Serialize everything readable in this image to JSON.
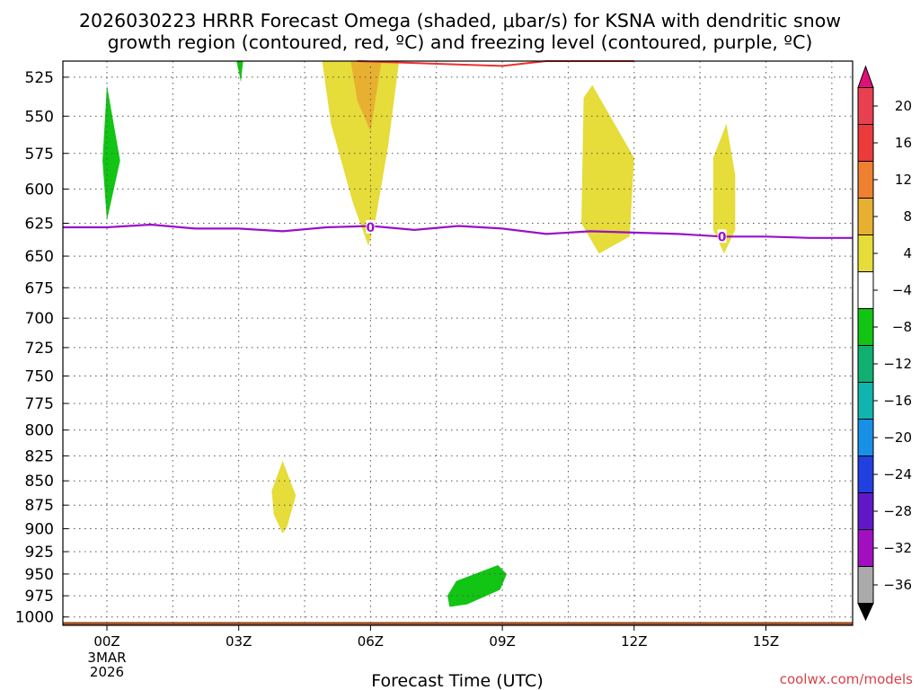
{
  "chart_data": {
    "type": "contour-time-height",
    "title_line1": "2026030223 HRRR Forecast Omega (shaded, μbar/s) for KSNA with dendritic snow",
    "title_line2": "growth region (contoured, red, ºC) and freezing level (contoured, purple, ºC)",
    "xlabel": "Forecast Time (UTC)",
    "credit": "coolwx.com/models",
    "x_range_hours": [
      -1,
      17
    ],
    "y_range_hpa": [
      1010,
      515
    ],
    "x_ticks": [
      {
        "hour": 0,
        "label": "00Z",
        "sub": [
          "3MAR",
          "2026"
        ]
      },
      {
        "hour": 3,
        "label": "03Z"
      },
      {
        "hour": 6,
        "label": "06Z"
      },
      {
        "hour": 9,
        "label": "09Z"
      },
      {
        "hour": 12,
        "label": "12Z"
      },
      {
        "hour": 15,
        "label": "15Z"
      }
    ],
    "y_ticks": [
      525,
      550,
      575,
      600,
      625,
      650,
      675,
      700,
      725,
      750,
      775,
      800,
      825,
      850,
      875,
      900,
      925,
      950,
      975,
      1000
    ],
    "vertical_grid_hours": [
      0,
      3,
      6,
      9,
      12,
      15
    ],
    "colorbar": {
      "labels": [
        "20",
        "16",
        "12",
        "8",
        "4",
        "−4",
        "−8",
        "−12",
        "−16",
        "−20",
        "−24",
        "−28",
        "−32",
        "−36"
      ],
      "colors": [
        "#e84050",
        "#ed3a3a",
        "#ee8030",
        "#e8b030",
        "#e6dc3a",
        "#ffffff",
        "#12c414",
        "#10b070",
        "#10b4b0",
        "#1890e8",
        "#2040e0",
        "#6018c8",
        "#a010c0",
        "#aaaaaa"
      ],
      "top_color": "#e0107a",
      "bottom_color": "#000000"
    },
    "shaded_regions": [
      {
        "name": "green-upper-left",
        "color": "#12c414",
        "points": [
          [
            -0.1,
            580
          ],
          [
            0.0,
            530
          ],
          [
            0.3,
            580
          ],
          [
            0.0,
            623
          ]
        ]
      },
      {
        "name": "green-top-03z",
        "color": "#12c414",
        "points": [
          [
            2.95,
            510
          ],
          [
            3.1,
            510
          ],
          [
            3.05,
            528
          ]
        ]
      },
      {
        "name": "yellow-06z-plume",
        "color": "#e6dc3a",
        "points": [
          [
            4.9,
            510
          ],
          [
            6.65,
            510
          ],
          [
            6.4,
            570
          ],
          [
            6.1,
            625
          ],
          [
            5.95,
            642
          ],
          [
            5.6,
            610
          ],
          [
            5.1,
            555
          ]
        ]
      },
      {
        "name": "orange-06z-core",
        "color": "#e8b030",
        "points": [
          [
            5.55,
            510
          ],
          [
            6.25,
            510
          ],
          [
            6.0,
            560
          ],
          [
            5.7,
            540
          ]
        ]
      },
      {
        "name": "yellow-11z",
        "color": "#e6dc3a",
        "points": [
          [
            10.85,
            538
          ],
          [
            11.05,
            530
          ],
          [
            12.0,
            578
          ],
          [
            11.9,
            635
          ],
          [
            11.2,
            648
          ],
          [
            10.8,
            625
          ]
        ]
      },
      {
        "name": "yellow-14z",
        "color": "#e6dc3a",
        "points": [
          [
            13.8,
            578
          ],
          [
            14.1,
            555
          ],
          [
            14.3,
            590
          ],
          [
            14.3,
            630
          ],
          [
            14.05,
            648
          ],
          [
            13.8,
            630
          ]
        ]
      },
      {
        "name": "yellow-04z-low",
        "color": "#e6dc3a",
        "points": [
          [
            3.75,
            860
          ],
          [
            4.0,
            830
          ],
          [
            4.3,
            865
          ],
          [
            4.1,
            898
          ],
          [
            4.0,
            905
          ],
          [
            3.8,
            885
          ]
        ]
      },
      {
        "name": "green-08z-low",
        "color": "#12c414",
        "points": [
          [
            7.75,
            975
          ],
          [
            7.95,
            958
          ],
          [
            8.9,
            940
          ],
          [
            9.1,
            950
          ],
          [
            8.95,
            968
          ],
          [
            8.2,
            985
          ],
          [
            7.8,
            988
          ]
        ]
      }
    ],
    "freezing_level_0C": [
      [
        -1,
        628
      ],
      [
        0,
        628
      ],
      [
        1,
        626
      ],
      [
        2,
        629
      ],
      [
        3,
        629
      ],
      [
        4,
        631
      ],
      [
        5,
        628
      ],
      [
        6,
        627
      ],
      [
        7,
        630
      ],
      [
        8,
        627
      ],
      [
        9,
        629
      ],
      [
        10,
        633
      ],
      [
        11,
        631
      ],
      [
        12,
        632
      ],
      [
        13,
        633
      ],
      [
        14,
        635
      ],
      [
        15,
        635
      ],
      [
        16,
        636
      ],
      [
        17,
        636
      ]
    ],
    "dendritic_growth_top": [
      [
        5.7,
        510
      ],
      [
        9.0,
        518
      ],
      [
        10.0,
        514
      ],
      [
        12.0,
        513
      ]
    ],
    "contour_labels": [
      {
        "hour": 6.0,
        "hpa": 628,
        "text": "0"
      },
      {
        "hour": 14.0,
        "hpa": 635,
        "text": "0"
      }
    ],
    "surface_band_top_hpa": 1006
  }
}
